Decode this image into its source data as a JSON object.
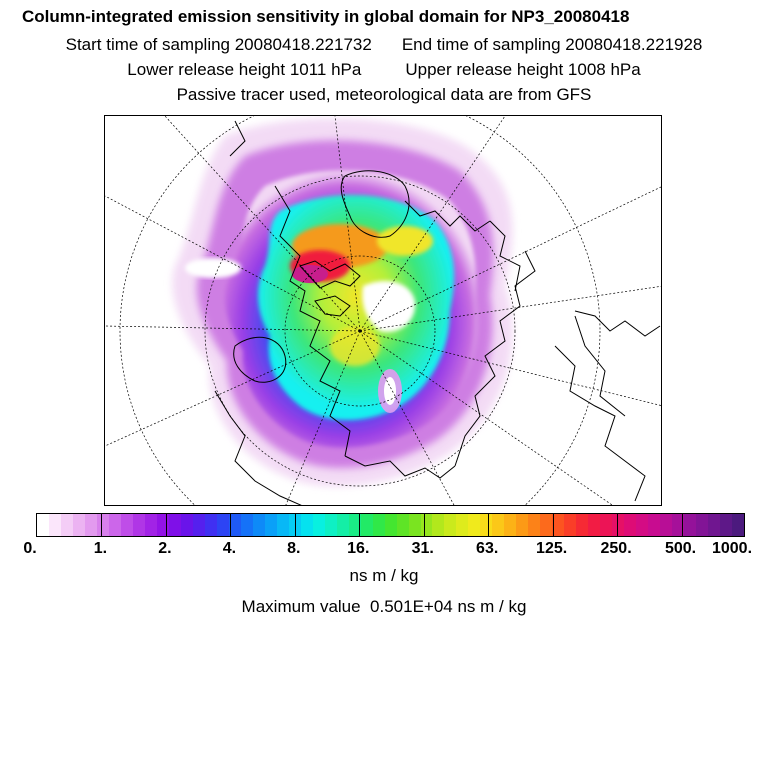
{
  "header": {
    "title": "Column-integrated emission sensitivity in global domain for NP3_20080418",
    "start_time": "Start time of sampling 20080418.221732",
    "end_time": "End time of sampling 20080418.221928",
    "lower_release": "Lower release height 1011 hPa",
    "upper_release": "Upper release height 1008 hPa",
    "tracer_note": "Passive tracer used, meteorological data are from GFS"
  },
  "map": {
    "projection": "polar stereographic north",
    "colors": {
      "lightest": "#f2d8f4",
      "light_purple": "#c86ee0",
      "purple": "#9a3fe6",
      "blue": "#3a4af0",
      "sky": "#1aa3ff",
      "cyan": "#18f0f0",
      "green": "#3ce67a",
      "lime": "#b4f03a",
      "yellow": "#f0e62a",
      "orange": "#f59a1e",
      "red": "#f01e3c",
      "magenta": "#c81e8c",
      "darkest": "#551e55"
    }
  },
  "colorbar": {
    "labels": [
      "0.",
      "1.",
      "2.",
      "4.",
      "8.",
      "16.",
      "31.",
      "63.",
      "125.",
      "250.",
      "500.",
      "1000."
    ],
    "colors": [
      "#ffffff",
      "#fbe6fb",
      "#f4cdf6",
      "#ecb3f2",
      "#e39aef",
      "#d880ec",
      "#cc66ea",
      "#bf4de8",
      "#b036e6",
      "#a223e6",
      "#9313e6",
      "#7f10e8",
      "#6a14ea",
      "#5520ee",
      "#4030f2",
      "#2d44f4",
      "#1f5af6",
      "#1572f8",
      "#0e8af8",
      "#0aa0f8",
      "#08b8f6",
      "#06cdf4",
      "#05e2ef",
      "#08f0e0",
      "#0ef0c4",
      "#14eea6",
      "#1aec86",
      "#22ea66",
      "#30e848",
      "#44e630",
      "#5ee426",
      "#7ae420",
      "#96e61e",
      "#b2e81c",
      "#caea1c",
      "#deeb1c",
      "#f0ea1c",
      "#f8dc1a",
      "#fbc818",
      "#fcb216",
      "#fc9a16",
      "#fc8218",
      "#fc6a1c",
      "#fc5420",
      "#fa3e28",
      "#f62a34",
      "#f21c44",
      "#ec1456",
      "#e61066",
      "#de0c76",
      "#d40c84",
      "#c80c90",
      "#b80e96",
      "#a6109a",
      "#94129a",
      "#821496",
      "#701690",
      "#5e1888",
      "#4c1a7e"
    ],
    "unit": "ns m / kg"
  },
  "footer": {
    "max_value": "Maximum value  0.501E+04 ns m / kg"
  }
}
